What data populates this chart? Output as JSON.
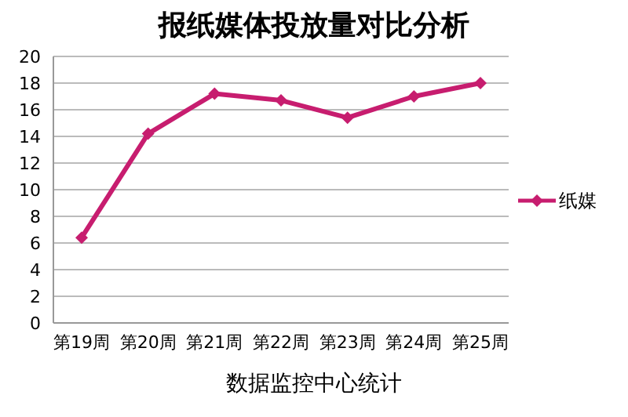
{
  "chart_data": {
    "type": "line",
    "title": "报纸媒体投放量对比分析",
    "categories": [
      "第19周",
      "第20周",
      "第21周",
      "第22周",
      "第23周",
      "第24周",
      "第25周"
    ],
    "series": [
      {
        "name": "纸媒",
        "color": "#c71d6f",
        "values": [
          6.4,
          14.2,
          17.2,
          16.7,
          15.4,
          17.0,
          18.0
        ]
      }
    ],
    "ylim": [
      0,
      20
    ],
    "yticks": [
      0,
      2,
      4,
      6,
      8,
      10,
      12,
      14,
      16,
      18,
      20
    ],
    "grid": "y",
    "legend": "right",
    "marker": "diamond",
    "line_style": "solid",
    "annotations": [
      "数据监控中心统计"
    ]
  }
}
